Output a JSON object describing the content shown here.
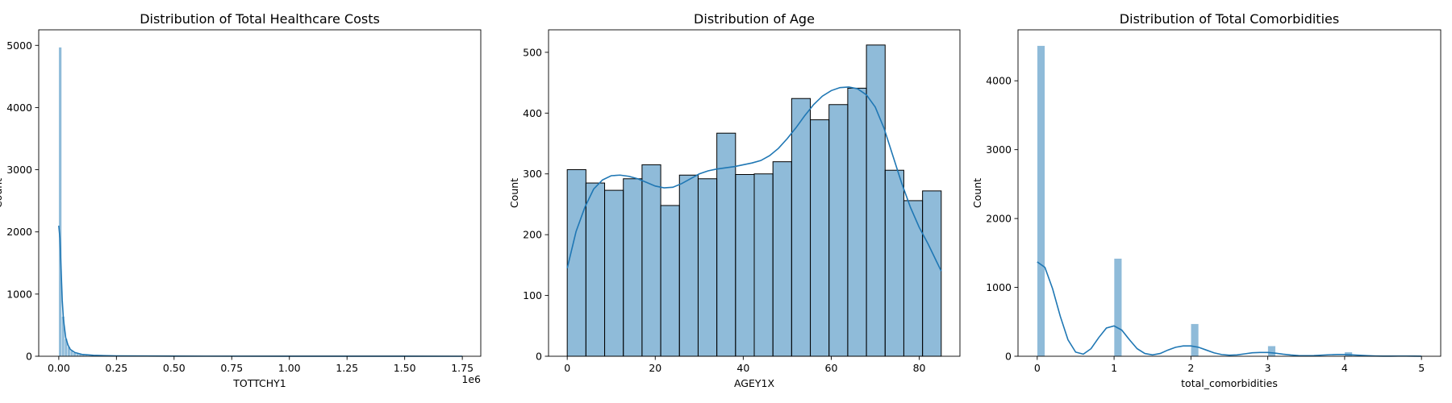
{
  "chart_data": [
    {
      "type": "histogram",
      "title": "Distribution of Total Healthcare Costs",
      "xlabel": "TOTTCHY1",
      "ylabel": "Count",
      "x_offset_label": "1e6",
      "xlim": [
        -0.087,
        1.83
      ],
      "ylim": [
        0,
        5250
      ],
      "xticks": [
        0.0,
        0.25,
        0.5,
        0.75,
        1.0,
        1.25,
        1.5,
        1.75
      ],
      "xtick_labels": [
        "0.00",
        "0.25",
        "0.50",
        "0.75",
        "1.00",
        "1.25",
        "1.50",
        "1.75"
      ],
      "yticks": [
        0,
        1000,
        2000,
        3000,
        4000,
        5000
      ],
      "ytick_labels": [
        "0",
        "1000",
        "2000",
        "3000",
        "4000",
        "5000"
      ],
      "bins": [
        {
          "x0": 0.0,
          "x1": 0.0125,
          "count": 4970
        },
        {
          "x0": 0.0125,
          "x1": 0.025,
          "count": 640
        },
        {
          "x0": 0.025,
          "x1": 0.0375,
          "count": 280
        },
        {
          "x0": 0.0375,
          "x1": 0.05,
          "count": 150
        },
        {
          "x0": 0.05,
          "x1": 0.0625,
          "count": 90
        },
        {
          "x0": 0.0625,
          "x1": 0.075,
          "count": 55
        },
        {
          "x0": 0.075,
          "x1": 0.0875,
          "count": 40
        },
        {
          "x0": 0.0875,
          "x1": 0.1,
          "count": 28
        },
        {
          "x0": 0.1,
          "x1": 0.1125,
          "count": 20
        },
        {
          "x0": 0.1125,
          "x1": 0.125,
          "count": 14
        },
        {
          "x0": 0.125,
          "x1": 0.1375,
          "count": 10
        },
        {
          "x0": 0.1375,
          "x1": 0.15,
          "count": 8
        },
        {
          "x0": 0.15,
          "x1": 0.1625,
          "count": 6
        },
        {
          "x0": 0.1625,
          "x1": 0.175,
          "count": 5
        },
        {
          "x0": 0.175,
          "x1": 0.1875,
          "count": 4
        },
        {
          "x0": 0.1875,
          "x1": 0.2,
          "count": 3
        },
        {
          "x0": 0.2,
          "x1": 0.25,
          "count": 3
        },
        {
          "x0": 0.25,
          "x1": 0.4,
          "count": 2
        },
        {
          "x0": 0.4,
          "x1": 1.75,
          "count": 1
        }
      ],
      "kde": {
        "x": [
          0.0,
          0.005,
          0.01,
          0.015,
          0.02,
          0.03,
          0.04,
          0.05,
          0.07,
          0.1,
          0.15,
          0.25,
          0.5,
          1.0,
          1.75
        ],
        "y": [
          2100,
          1900,
          1400,
          900,
          600,
          300,
          180,
          110,
          60,
          30,
          15,
          6,
          2,
          1,
          0
        ]
      }
    },
    {
      "type": "histogram",
      "title": "Distribution of Age",
      "xlabel": "AGEY1X",
      "ylabel": "Count",
      "xlim": [
        -4.25,
        89.25
      ],
      "ylim": [
        0,
        537
      ],
      "xticks": [
        0,
        20,
        40,
        60,
        80
      ],
      "xtick_labels": [
        "0",
        "20",
        "40",
        "60",
        "80"
      ],
      "yticks": [
        0,
        100,
        200,
        300,
        400,
        500
      ],
      "ytick_labels": [
        "0",
        "100",
        "200",
        "300",
        "400",
        "500"
      ],
      "bins": [
        {
          "x0": 0.0,
          "x1": 4.25,
          "count": 307
        },
        {
          "x0": 4.25,
          "x1": 8.5,
          "count": 285
        },
        {
          "x0": 8.5,
          "x1": 12.75,
          "count": 273
        },
        {
          "x0": 12.75,
          "x1": 17.0,
          "count": 292
        },
        {
          "x0": 17.0,
          "x1": 21.25,
          "count": 315
        },
        {
          "x0": 21.25,
          "x1": 25.5,
          "count": 248
        },
        {
          "x0": 25.5,
          "x1": 29.75,
          "count": 298
        },
        {
          "x0": 29.75,
          "x1": 34.0,
          "count": 292
        },
        {
          "x0": 34.0,
          "x1": 38.25,
          "count": 367
        },
        {
          "x0": 38.25,
          "x1": 42.5,
          "count": 299
        },
        {
          "x0": 42.5,
          "x1": 46.75,
          "count": 300
        },
        {
          "x0": 46.75,
          "x1": 51.0,
          "count": 320
        },
        {
          "x0": 51.0,
          "x1": 55.25,
          "count": 424
        },
        {
          "x0": 55.25,
          "x1": 59.5,
          "count": 389
        },
        {
          "x0": 59.5,
          "x1": 63.75,
          "count": 414
        },
        {
          "x0": 63.75,
          "x1": 68.0,
          "count": 441
        },
        {
          "x0": 68.0,
          "x1": 72.25,
          "count": 512
        },
        {
          "x0": 72.25,
          "x1": 76.5,
          "count": 306
        },
        {
          "x0": 76.5,
          "x1": 80.75,
          "count": 256
        },
        {
          "x0": 80.75,
          "x1": 85.0,
          "count": 272
        }
      ],
      "kde": {
        "x": [
          0,
          2,
          4,
          6,
          8,
          10,
          12,
          14,
          16,
          18,
          20,
          22,
          24,
          26,
          28,
          30,
          32,
          34,
          36,
          38,
          40,
          42,
          44,
          46,
          48,
          50,
          52,
          54,
          56,
          58,
          60,
          62,
          64,
          66,
          68,
          70,
          72,
          74,
          76,
          78,
          80,
          82,
          84,
          85
        ],
        "y": [
          145,
          205,
          245,
          275,
          290,
          297,
          298,
          296,
          292,
          286,
          280,
          277,
          278,
          284,
          292,
          300,
          305,
          308,
          310,
          312,
          315,
          318,
          322,
          330,
          342,
          358,
          376,
          396,
          414,
          428,
          437,
          442,
          443,
          440,
          430,
          410,
          375,
          330,
          285,
          245,
          212,
          185,
          155,
          140
        ]
      }
    },
    {
      "type": "histogram",
      "title": "Distribution of Total Comorbidities",
      "xlabel": "total_comorbidities",
      "ylabel": "Count",
      "xlim": [
        -0.25,
        5.25
      ],
      "ylim": [
        0,
        4740
      ],
      "xticks": [
        0,
        1,
        2,
        3,
        4,
        5
      ],
      "xtick_labels": [
        "0",
        "1",
        "2",
        "3",
        "4",
        "5"
      ],
      "yticks": [
        0,
        1000,
        2000,
        3000,
        4000
      ],
      "ytick_labels": [
        "0",
        "1000",
        "2000",
        "3000",
        "4000"
      ],
      "bins": [
        {
          "x0": 0.0,
          "x1": 0.1,
          "count": 4510
        },
        {
          "x0": 1.0,
          "x1": 1.1,
          "count": 1420
        },
        {
          "x0": 2.0,
          "x1": 2.1,
          "count": 470
        },
        {
          "x0": 3.0,
          "x1": 3.1,
          "count": 150
        },
        {
          "x0": 4.0,
          "x1": 4.1,
          "count": 60
        },
        {
          "x0": 4.9,
          "x1": 5.0,
          "count": 5
        }
      ],
      "kde": {
        "x": [
          0.0,
          0.1,
          0.2,
          0.3,
          0.4,
          0.5,
          0.6,
          0.7,
          0.8,
          0.9,
          1.0,
          1.1,
          1.2,
          1.3,
          1.4,
          1.5,
          1.6,
          1.7,
          1.8,
          1.9,
          2.0,
          2.1,
          2.2,
          2.3,
          2.4,
          2.5,
          2.6,
          2.7,
          2.8,
          2.9,
          3.0,
          3.1,
          3.2,
          3.3,
          3.4,
          3.5,
          3.6,
          3.7,
          3.8,
          3.9,
          4.0,
          4.1,
          4.2,
          4.3,
          4.4,
          4.5,
          4.6,
          4.7,
          4.8,
          4.9,
          5.0
        ],
        "y": [
          1370,
          1290,
          980,
          580,
          240,
          60,
          30,
          110,
          270,
          410,
          440,
          380,
          240,
          110,
          40,
          20,
          40,
          90,
          130,
          150,
          150,
          130,
          90,
          50,
          25,
          15,
          20,
          35,
          50,
          55,
          55,
          45,
          30,
          18,
          10,
          8,
          10,
          16,
          22,
          25,
          25,
          20,
          14,
          8,
          4,
          2,
          2,
          3,
          3,
          2,
          1
        ]
      }
    }
  ],
  "colors": {
    "bar_fill": "#1f77b4",
    "bar_fill_opacity": 0.5,
    "line": "#1f77b4",
    "edge": "#000000"
  }
}
